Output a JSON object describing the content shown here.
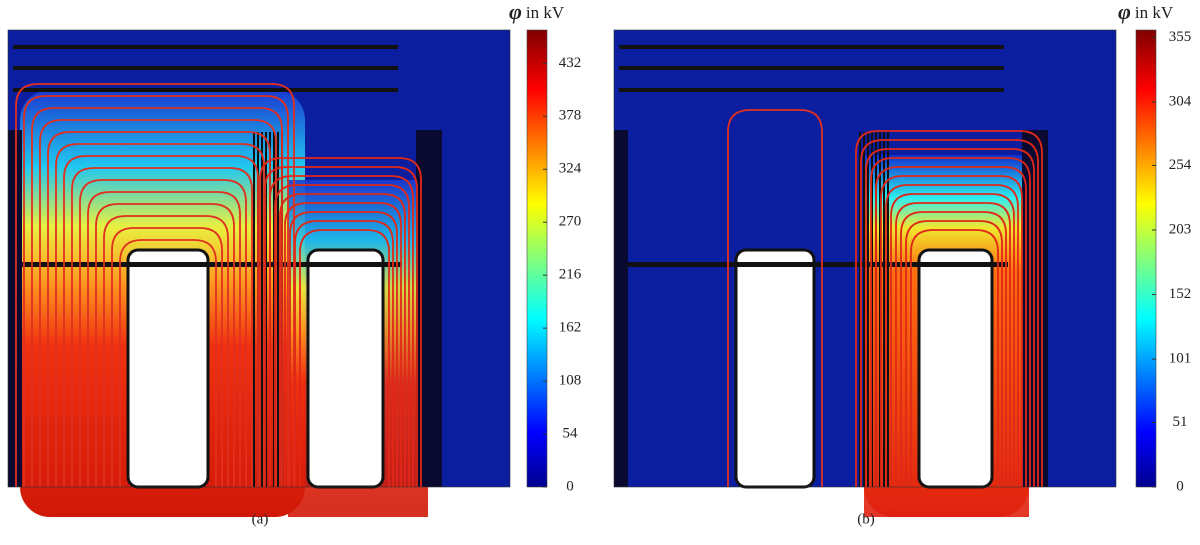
{
  "panels": [
    {
      "caption": "(a)",
      "colorbar": {
        "symbol": "φ",
        "unit_label": "in kV",
        "clim": [
          0,
          466
        ],
        "ticks": [
          0,
          54,
          108,
          162,
          216,
          270,
          324,
          378,
          432
        ]
      }
    },
    {
      "caption": "(b)",
      "colorbar": {
        "symbol": "φ",
        "unit_label": "in kV",
        "clim": [
          0,
          361
        ],
        "ticks": [
          0,
          51,
          101,
          152,
          203,
          254,
          304,
          355
        ]
      }
    }
  ]
}
